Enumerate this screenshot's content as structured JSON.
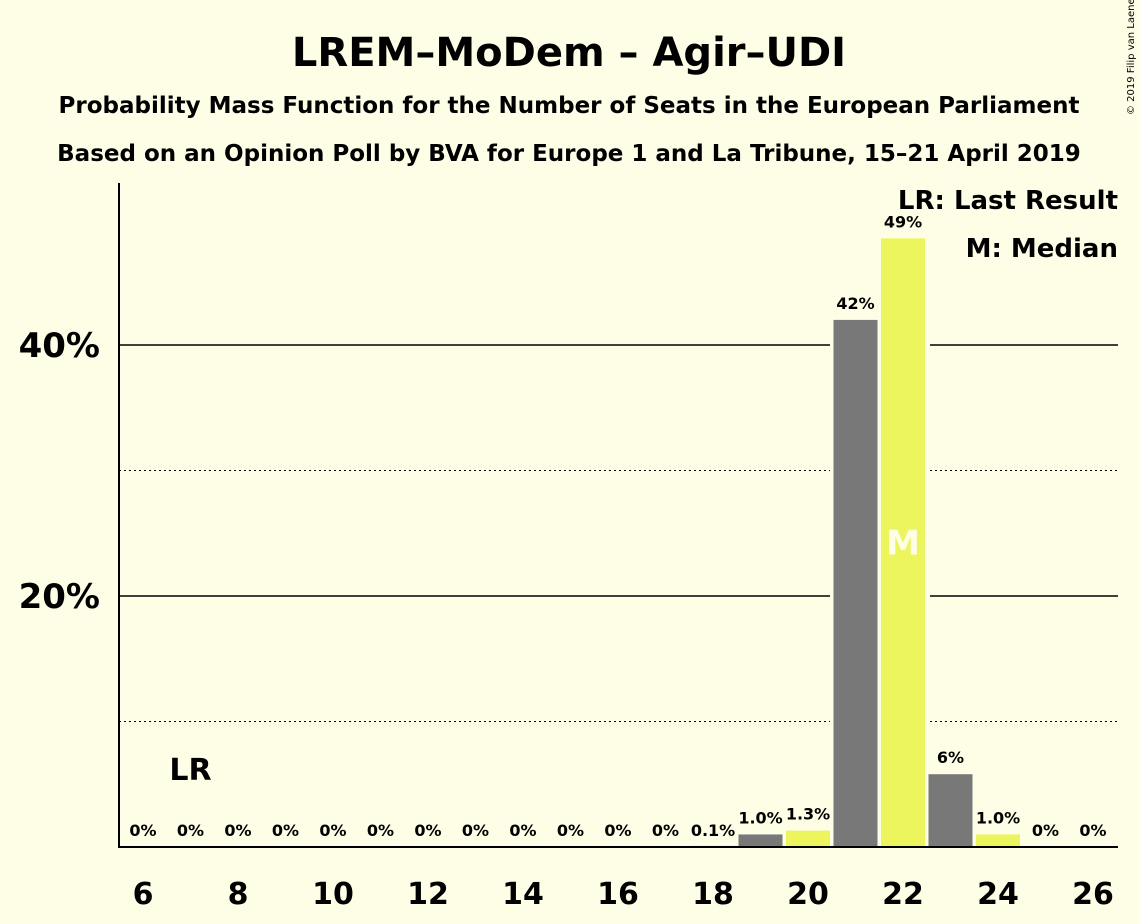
{
  "chart_data": {
    "type": "bar",
    "title": "LREM–MoDem – Agir–UDI",
    "subtitle_1": "Probability Mass Function for the Number of Seats in the European Parliament",
    "subtitle_2": "Based on an Opinion Poll by BVA for Europe 1 and La Tribune, 15–21 April 2019",
    "copyright": "© 2019 Filip van Laenen",
    "x": [
      6,
      7,
      8,
      9,
      10,
      11,
      12,
      13,
      14,
      15,
      16,
      17,
      18,
      19,
      20,
      21,
      22,
      23,
      24,
      25,
      26
    ],
    "values": [
      0,
      0,
      0,
      0,
      0,
      0,
      0,
      0,
      0,
      0,
      0,
      0,
      0.1,
      1.0,
      1.3,
      42,
      48.5,
      5.8,
      1.0,
      0,
      0
    ],
    "labels": [
      "0%",
      "0%",
      "0%",
      "0%",
      "0%",
      "0%",
      "0%",
      "0%",
      "0%",
      "0%",
      "0%",
      "0%",
      "0.1%",
      "1.0%",
      "1.3%",
      "42%",
      "49%",
      "6%",
      "1.0%",
      "0%",
      "0%"
    ],
    "x_tick_labels": [
      "6",
      "8",
      "10",
      "12",
      "14",
      "16",
      "18",
      "20",
      "22",
      "24",
      "26"
    ],
    "y_ticks": [
      20,
      40
    ],
    "y_tick_labels": [
      "20%",
      "40%"
    ],
    "y_minor_ticks": [
      10,
      30
    ],
    "ylim": [
      0,
      52.7
    ],
    "last_result_seat": 7,
    "last_result_mark": "LR",
    "median_seat": 22,
    "median_mark": "M",
    "legend": {
      "position": "top-right",
      "last_result": "LR: Last Result",
      "median": "M: Median"
    },
    "colors": {
      "background": "#fefde6",
      "bar_even": "#ecf55d",
      "bar_odd": "#787878",
      "axis": "#000000"
    }
  }
}
